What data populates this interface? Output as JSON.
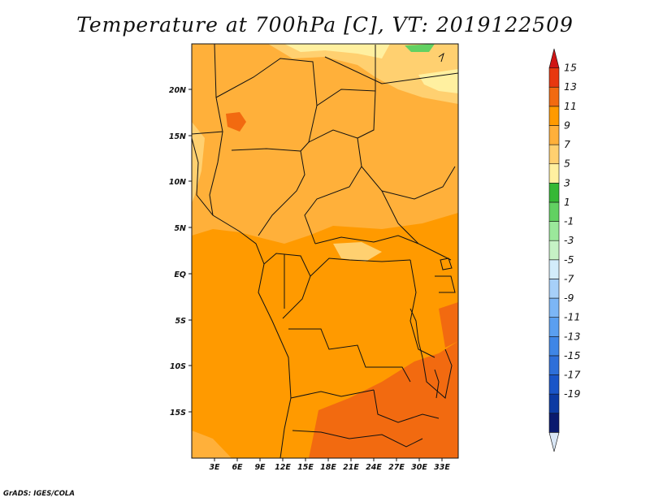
{
  "title": "Temperature at 700hPa [C], VT: 2019122509",
  "credit": "GrADS: IGES/COLA",
  "axes": {
    "lat_labels": [
      "20N",
      "15N",
      "10N",
      "5N",
      "EQ",
      "5S",
      "10S",
      "15S"
    ],
    "lon_labels": [
      "3E",
      "6E",
      "9E",
      "12E",
      "15E",
      "18E",
      "21E",
      "24E",
      "27E",
      "30E",
      "33E"
    ]
  },
  "colorbar": {
    "labels": [
      "15",
      "13",
      "11",
      "9",
      "7",
      "5",
      "3",
      "1",
      "-1",
      "-3",
      "-5",
      "-7",
      "-9",
      "-11",
      "-13",
      "-15",
      "-17",
      "-19"
    ],
    "colors": [
      "#d9e6f5",
      "#0a1a6e",
      "#0c3aa3",
      "#1a55c8",
      "#2e6fd9",
      "#3f86e6",
      "#5a9ff0",
      "#7cb6f6",
      "#a7d0f9",
      "#d3ecfb",
      "#c6f2c6",
      "#9be89b",
      "#62d162",
      "#35b835",
      "#fff0a0",
      "#ffd070",
      "#ffb03a",
      "#ff9a00",
      "#f26a10",
      "#e8380f",
      "#d01515"
    ]
  },
  "map_colors": {
    "base": "#ff9a00",
    "warm7": "#ffb03a",
    "warm5": "#ffd070",
    "warm3": "#fff0a0",
    "hot11": "#f26a10",
    "cool1": "#62d162",
    "border": "#111111"
  }
}
